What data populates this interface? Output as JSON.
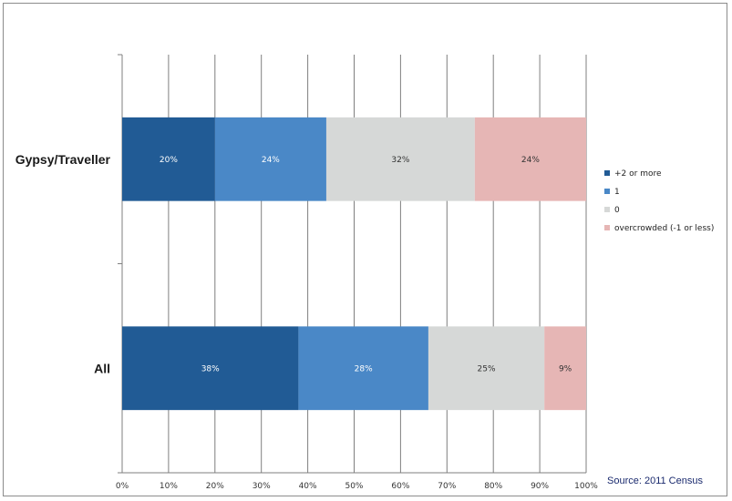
{
  "chart_data": {
    "type": "bar",
    "orientation": "horizontal",
    "stacked": "percent",
    "categories": [
      "Gypsy/Traveller",
      "All"
    ],
    "series": [
      {
        "name": "+2 or more",
        "color": "#215b95",
        "values": [
          20,
          38
        ],
        "labels": [
          "20%",
          "38%"
        ]
      },
      {
        "name": "1",
        "color": "#4a88c7",
        "values": [
          24,
          28
        ],
        "labels": [
          "24%",
          "28%"
        ]
      },
      {
        "name": "0",
        "color": "#d6d8d7",
        "values": [
          32,
          25
        ],
        "labels": [
          "32%",
          "25%"
        ]
      },
      {
        "name": "overcrowded (-1 or less)",
        "color": "#e6b6b5",
        "values": [
          24,
          9
        ],
        "labels": [
          "24%",
          "9%"
        ]
      }
    ],
    "xlim": [
      0,
      100
    ],
    "xticks": [
      "0%",
      "10%",
      "20%",
      "30%",
      "40%",
      "50%",
      "60%",
      "70%",
      "80%",
      "90%",
      "100%"
    ],
    "grid": "vertical",
    "legend": "right"
  },
  "source": "Source: 2011 Census"
}
